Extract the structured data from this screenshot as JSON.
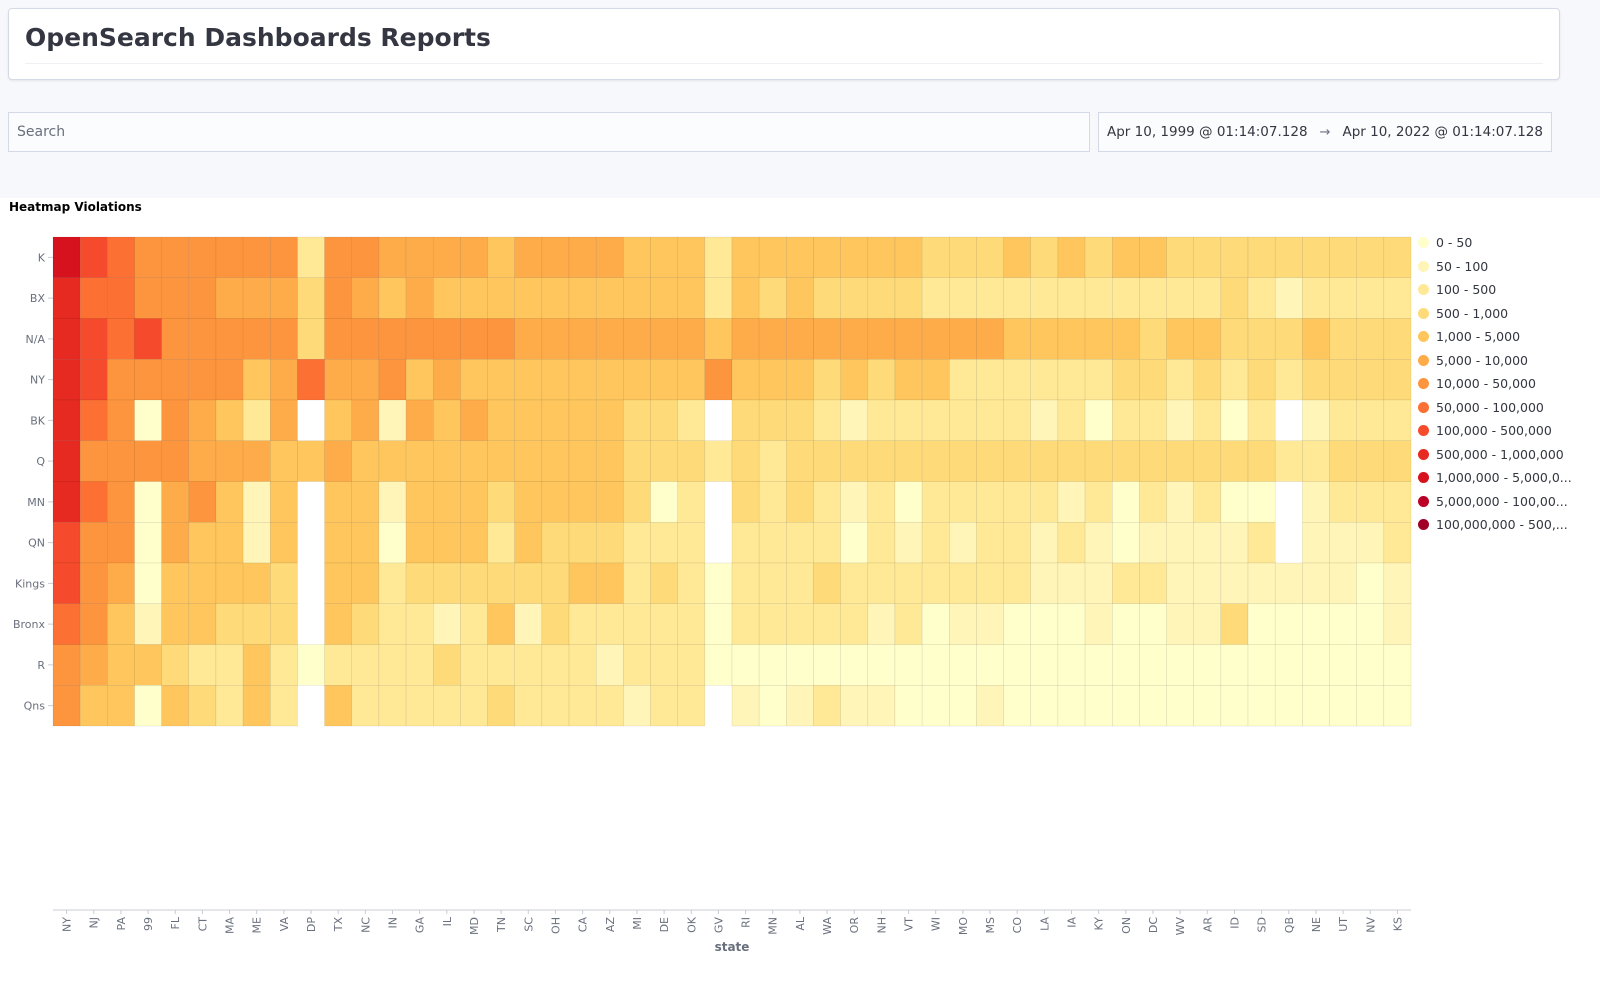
{
  "header": {
    "title": "OpenSearch Dashboards Reports"
  },
  "search": {
    "placeholder": "Search"
  },
  "date_range": {
    "start": "Apr 10, 1999 @ 01:14:07.128",
    "arrow": "→",
    "end": "Apr 10, 2022 @ 01:14:07.128"
  },
  "visualization": {
    "title": "Heatmap Violations"
  },
  "legend": [
    {
      "label": "0 - 50",
      "color": "#ffffcc"
    },
    {
      "label": "50 - 100",
      "color": "#fff5b8"
    },
    {
      "label": "100 - 500",
      "color": "#ffe996"
    },
    {
      "label": "500 - 1,000",
      "color": "#fedb78"
    },
    {
      "label": "1,000 - 5,000",
      "color": "#fec65d"
    },
    {
      "label": "5,000 - 10,000",
      "color": "#feab49"
    },
    {
      "label": "10,000 - 50,000",
      "color": "#fd953e"
    },
    {
      "label": "50,000 - 100,000",
      "color": "#fc7034"
    },
    {
      "label": "100,000 - 500,000",
      "color": "#f54a2c"
    },
    {
      "label": "500,000 - 1,000,000",
      "color": "#e62a21"
    },
    {
      "label": "1,000,000 - 5,000,0...",
      "color": "#d6121e"
    },
    {
      "label": "5,000,000 - 100,00...",
      "color": "#bc0026"
    },
    {
      "label": "100,000,000 - 500,...",
      "color": "#a00025"
    }
  ],
  "chart_data": {
    "type": "heatmap",
    "xlabel": "state",
    "ylabel": "",
    "x": [
      "NY",
      "NJ",
      "PA",
      "99",
      "FL",
      "CT",
      "MA",
      "ME",
      "VA",
      "DP",
      "TX",
      "NC",
      "IN",
      "GA",
      "IL",
      "MD",
      "TN",
      "SC",
      "OH",
      "CA",
      "AZ",
      "MI",
      "DE",
      "OK",
      "GV",
      "RI",
      "MN",
      "AL",
      "WA",
      "OR",
      "NH",
      "VT",
      "WI",
      "MO",
      "MS",
      "CO",
      "LA",
      "IA",
      "KY",
      "ON",
      "DC",
      "WV",
      "AR",
      "ID",
      "SD",
      "QB",
      "NE",
      "UT",
      "NV",
      "KS"
    ],
    "y": [
      "K",
      "BX",
      "N/A",
      "NY",
      "BK",
      "Q",
      "MN",
      "QN",
      "Kings",
      "Bronx",
      "R",
      "Qns"
    ],
    "legend_placement": "right",
    "value_scale": "legend bucket index (0 = '0 - 50' ... 12 = '100,000,000 - 500,...'); null = no data",
    "values": [
      [
        10,
        8,
        7,
        6,
        6,
        6,
        6,
        6,
        6,
        2,
        6,
        6,
        5,
        5,
        5,
        5,
        4,
        5,
        5,
        5,
        5,
        4,
        4,
        4,
        2,
        4,
        4,
        4,
        4,
        4,
        4,
        4,
        3,
        3,
        3,
        4,
        3,
        4,
        3,
        4,
        4,
        3,
        3,
        3,
        3,
        3,
        3,
        3,
        3,
        3
      ],
      [
        9,
        7,
        7,
        6,
        6,
        6,
        5,
        5,
        5,
        3,
        6,
        5,
        4,
        5,
        4,
        4,
        4,
        4,
        4,
        4,
        4,
        4,
        4,
        4,
        2,
        4,
        3,
        4,
        3,
        3,
        3,
        3,
        2,
        2,
        2,
        2,
        2,
        2,
        2,
        2,
        2,
        2,
        2,
        3,
        2,
        1,
        2,
        2,
        2,
        2
      ],
      [
        9,
        8,
        7,
        8,
        6,
        6,
        6,
        6,
        6,
        3,
        6,
        6,
        6,
        6,
        6,
        6,
        6,
        5,
        5,
        5,
        5,
        5,
        5,
        5,
        4,
        5,
        5,
        5,
        5,
        5,
        5,
        5,
        5,
        5,
        5,
        4,
        4,
        4,
        4,
        4,
        3,
        4,
        4,
        3,
        3,
        3,
        4,
        3,
        3,
        3
      ],
      [
        9,
        8,
        6,
        6,
        6,
        6,
        6,
        4,
        5,
        7,
        5,
        5,
        6,
        4,
        5,
        4,
        4,
        4,
        4,
        4,
        4,
        4,
        4,
        4,
        6,
        4,
        4,
        4,
        3,
        4,
        3,
        4,
        4,
        2,
        2,
        2,
        2,
        2,
        2,
        3,
        3,
        2,
        3,
        2,
        3,
        2,
        3,
        3,
        3,
        3
      ],
      [
        9,
        7,
        6,
        0,
        6,
        5,
        4,
        2,
        5,
        null,
        4,
        5,
        1,
        5,
        4,
        5,
        4,
        4,
        4,
        4,
        4,
        3,
        3,
        2,
        null,
        3,
        3,
        3,
        2,
        1,
        2,
        2,
        2,
        2,
        2,
        2,
        1,
        2,
        0,
        2,
        2,
        1,
        2,
        0,
        2,
        null,
        1,
        2,
        2,
        2
      ],
      [
        9,
        6,
        6,
        6,
        6,
        5,
        5,
        5,
        4,
        4,
        5,
        4,
        4,
        4,
        4,
        4,
        4,
        4,
        4,
        4,
        4,
        3,
        3,
        3,
        2,
        3,
        2,
        3,
        3,
        3,
        3,
        3,
        3,
        3,
        3,
        3,
        3,
        3,
        3,
        3,
        3,
        3,
        3,
        3,
        3,
        2,
        2,
        3,
        3,
        3
      ],
      [
        9,
        7,
        6,
        0,
        5,
        6,
        4,
        1,
        4,
        null,
        4,
        4,
        1,
        4,
        4,
        4,
        3,
        4,
        4,
        4,
        4,
        3,
        0,
        2,
        null,
        3,
        2,
        3,
        2,
        1,
        2,
        0,
        2,
        2,
        2,
        2,
        2,
        1,
        2,
        0,
        2,
        1,
        2,
        0,
        0,
        null,
        1,
        2,
        2,
        2
      ],
      [
        8,
        6,
        6,
        0,
        5,
        4,
        4,
        1,
        4,
        null,
        4,
        4,
        0,
        4,
        4,
        4,
        2,
        4,
        3,
        3,
        3,
        2,
        2,
        2,
        null,
        2,
        2,
        2,
        2,
        0,
        2,
        1,
        2,
        1,
        2,
        2,
        1,
        2,
        1,
        0,
        1,
        1,
        1,
        1,
        2,
        null,
        1,
        1,
        1,
        2
      ],
      [
        8,
        6,
        5,
        0,
        4,
        4,
        4,
        4,
        3,
        null,
        4,
        4,
        2,
        3,
        3,
        3,
        3,
        3,
        3,
        4,
        4,
        2,
        3,
        2,
        0,
        2,
        2,
        2,
        3,
        2,
        2,
        2,
        2,
        2,
        2,
        2,
        1,
        1,
        1,
        2,
        2,
        1,
        1,
        1,
        1,
        1,
        1,
        1,
        0,
        1
      ],
      [
        7,
        6,
        4,
        1,
        4,
        4,
        3,
        3,
        3,
        null,
        4,
        3,
        2,
        2,
        1,
        2,
        4,
        1,
        3,
        2,
        2,
        2,
        2,
        2,
        0,
        2,
        2,
        2,
        2,
        2,
        1,
        2,
        0,
        1,
        1,
        0,
        0,
        0,
        1,
        0,
        0,
        1,
        1,
        3,
        0,
        0,
        0,
        0,
        0,
        1
      ],
      [
        6,
        5,
        4,
        4,
        3,
        2,
        2,
        4,
        2,
        0,
        2,
        2,
        2,
        2,
        3,
        2,
        2,
        2,
        2,
        2,
        1,
        2,
        2,
        2,
        0,
        0,
        0,
        0,
        0,
        0,
        0,
        0,
        0,
        0,
        0,
        0,
        0,
        0,
        0,
        0,
        0,
        0,
        0,
        0,
        0,
        0,
        0,
        0,
        0,
        0
      ],
      [
        6,
        4,
        4,
        0,
        4,
        3,
        2,
        4,
        2,
        null,
        4,
        2,
        2,
        2,
        2,
        2,
        3,
        2,
        2,
        2,
        2,
        1,
        2,
        2,
        null,
        1,
        0,
        1,
        2,
        1,
        1,
        0,
        0,
        0,
        1,
        0,
        0,
        0,
        0,
        0,
        0,
        0,
        0,
        0,
        0,
        0,
        0,
        0,
        0,
        0
      ]
    ]
  }
}
